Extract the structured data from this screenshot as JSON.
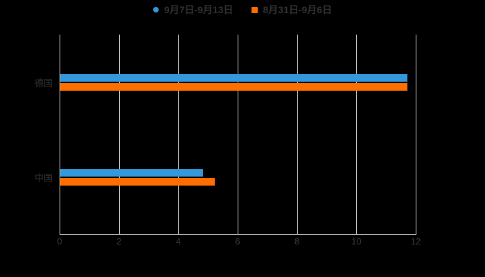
{
  "page": {
    "background": "#000000",
    "text_color": "#333333"
  },
  "legend": {
    "position": "top-center",
    "items": [
      {
        "label": "9月7日-9月13日",
        "color": "#3498db",
        "marker": "circle"
      },
      {
        "label": "8月31日-9月6日",
        "color": "#ff6e00",
        "marker": "square"
      }
    ]
  },
  "chart_data": {
    "type": "bar",
    "orientation": "horizontal",
    "title": "",
    "xlabel": "",
    "ylabel": "",
    "categories": [
      "德国",
      "中国"
    ],
    "series": [
      {
        "name": "9月7日-9月13日",
        "color": "#3498db",
        "values": [
          11.7,
          4.8
        ]
      },
      {
        "name": "8月31日-9月6日",
        "color": "#ff6e00",
        "values": [
          11.7,
          5.2
        ]
      }
    ],
    "xlim": [
      0,
      12
    ],
    "x_ticks": [
      0,
      2,
      4,
      6,
      8,
      10,
      12
    ],
    "grid": true,
    "grid_color": "#c9c9c9",
    "axis_color": "#cccccc",
    "legend_position": "top"
  }
}
